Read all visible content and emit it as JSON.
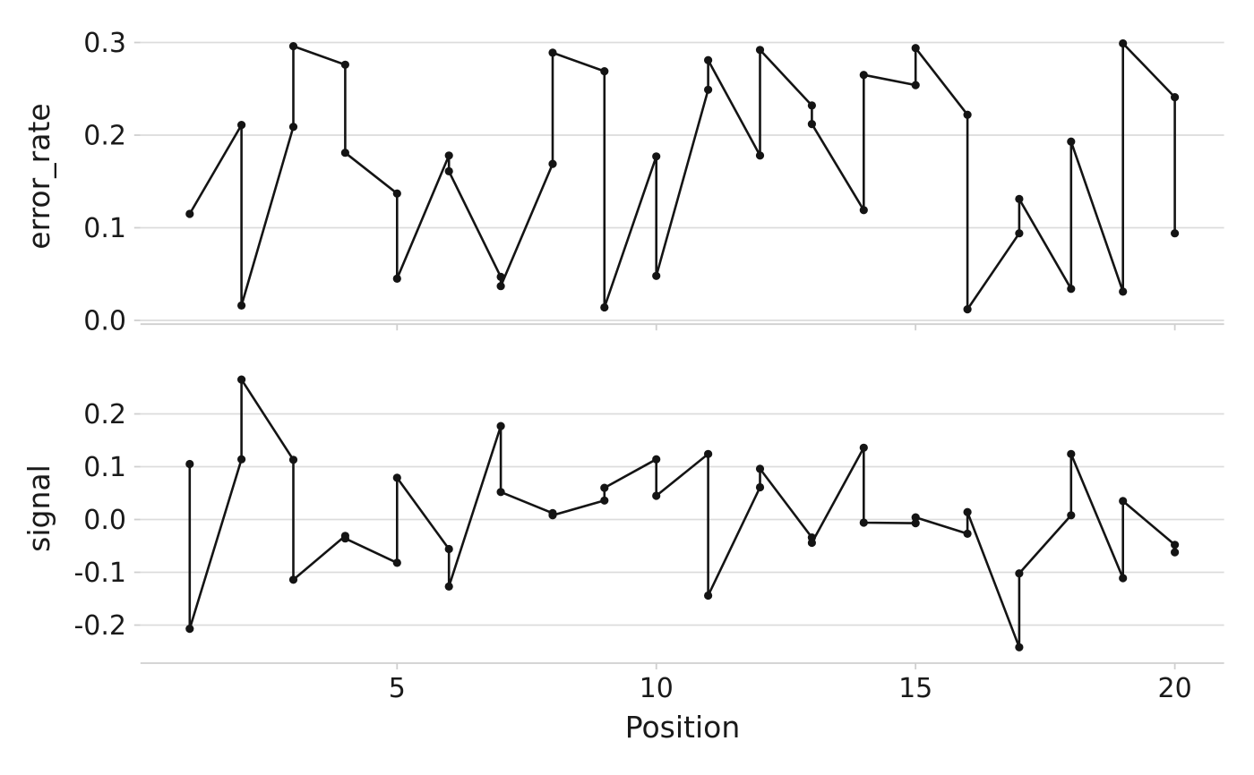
{
  "figure": {
    "background": "#ffffff",
    "xlabel": "Position",
    "x_ticks": [
      {
        "v": 5,
        "label": "5"
      },
      {
        "v": 10,
        "label": "10"
      },
      {
        "v": 15,
        "label": "15"
      },
      {
        "v": 20,
        "label": "20"
      }
    ],
    "style": {
      "line_color": "#141414",
      "marker_color": "#141414",
      "grid_color": "#dcdcdc",
      "spine_color": "#cfcfcf",
      "tick_color": "#cfcfcf",
      "text_color": "#1a1a1a",
      "line_width": 2.6,
      "marker_radius": 4.6
    }
  },
  "chart_data": [
    {
      "type": "line",
      "panel": "top",
      "ylabel": "error_rate",
      "marker": "point",
      "grid": "horizontal",
      "legend": "none",
      "xlim": [
        0.05,
        20.95
      ],
      "ylim": [
        -0.004,
        0.321
      ],
      "yticks": [
        {
          "v": 0.0,
          "label": "0.0"
        },
        {
          "v": 0.1,
          "label": "0.1"
        },
        {
          "v": 0.2,
          "label": "0.2"
        },
        {
          "v": 0.3,
          "label": "0.3"
        }
      ],
      "points": [
        [
          1,
          0.115
        ],
        [
          2,
          0.211
        ],
        [
          2,
          0.016
        ],
        [
          3,
          0.209
        ],
        [
          3,
          0.296
        ],
        [
          4,
          0.276
        ],
        [
          4,
          0.181
        ],
        [
          5,
          0.137
        ],
        [
          5,
          0.045
        ],
        [
          6,
          0.178
        ],
        [
          6,
          0.161
        ],
        [
          7,
          0.047
        ],
        [
          7,
          0.037
        ],
        [
          8,
          0.169
        ],
        [
          8,
          0.289
        ],
        [
          9,
          0.269
        ],
        [
          9,
          0.014
        ],
        [
          10,
          0.177
        ],
        [
          10,
          0.048
        ],
        [
          11,
          0.249
        ],
        [
          11,
          0.281
        ],
        [
          12,
          0.178
        ],
        [
          12,
          0.292
        ],
        [
          13,
          0.232
        ],
        [
          13,
          0.212
        ],
        [
          14,
          0.119
        ],
        [
          14,
          0.265
        ],
        [
          15,
          0.254
        ],
        [
          15,
          0.294
        ],
        [
          16,
          0.222
        ],
        [
          16,
          0.012
        ],
        [
          17,
          0.094
        ],
        [
          17,
          0.131
        ],
        [
          18,
          0.034
        ],
        [
          18,
          0.193
        ],
        [
          19,
          0.031
        ],
        [
          19,
          0.299
        ],
        [
          20,
          0.241
        ],
        [
          20,
          0.094
        ]
      ]
    },
    {
      "type": "line",
      "panel": "bottom",
      "ylabel": "signal",
      "marker": "point",
      "grid": "horizontal",
      "legend": "none",
      "xlim": [
        0.05,
        20.95
      ],
      "ylim": [
        -0.273,
        0.306
      ],
      "yticks": [
        {
          "v": 0.2,
          "label": "0.2"
        },
        {
          "v": 0.1,
          "label": "0.1"
        },
        {
          "v": 0.0,
          "label": "0.0"
        },
        {
          "v": -0.1,
          "label": "-0.1"
        },
        {
          "v": -0.2,
          "label": "-0.2"
        }
      ],
      "points": [
        [
          1,
          0.105
        ],
        [
          1,
          -0.207
        ],
        [
          2,
          0.114
        ],
        [
          2,
          0.265
        ],
        [
          3,
          0.113
        ],
        [
          3,
          -0.114
        ],
        [
          4,
          -0.031
        ],
        [
          4,
          -0.036
        ],
        [
          5,
          -0.082
        ],
        [
          5,
          0.079
        ],
        [
          6,
          -0.056
        ],
        [
          6,
          -0.127
        ],
        [
          7,
          0.177
        ],
        [
          7,
          0.052
        ],
        [
          8,
          0.012
        ],
        [
          8,
          0.008
        ],
        [
          9,
          0.036
        ],
        [
          9,
          0.06
        ],
        [
          10,
          0.114
        ],
        [
          10,
          0.045
        ],
        [
          11,
          0.124
        ],
        [
          11,
          -0.144
        ],
        [
          12,
          0.061
        ],
        [
          12,
          0.096
        ],
        [
          13,
          -0.034
        ],
        [
          13,
          -0.044
        ],
        [
          14,
          0.136
        ],
        [
          14,
          -0.006
        ],
        [
          15,
          -0.007
        ],
        [
          15,
          0.004
        ],
        [
          16,
          -0.027
        ],
        [
          16,
          0.014
        ],
        [
          17,
          -0.242
        ],
        [
          17,
          -0.102
        ],
        [
          18,
          0.008
        ],
        [
          18,
          0.124
        ],
        [
          19,
          -0.111
        ],
        [
          19,
          0.035
        ],
        [
          20,
          -0.048
        ],
        [
          20,
          -0.062
        ]
      ]
    }
  ]
}
